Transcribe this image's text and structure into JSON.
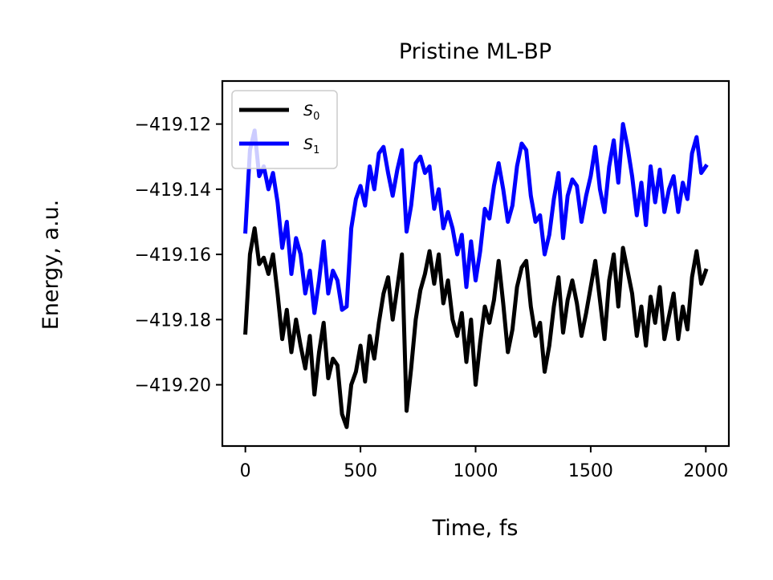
{
  "chart_data": {
    "type": "line",
    "title": "Pristine ML-BP",
    "xlabel": "Time, fs",
    "ylabel": "Energy, a.u.",
    "xlim": [
      -100,
      2100
    ],
    "ylim": [
      -419.2188,
      -419.1068
    ],
    "xticks": [
      0,
      500,
      1000,
      1500,
      2000
    ],
    "xtick_labels": [
      "0",
      "500",
      "1000",
      "1500",
      "2000"
    ],
    "yticks": [
      -419.2,
      -419.18,
      -419.16,
      -419.14,
      -419.12
    ],
    "ytick_labels": [
      "−419.20",
      "−419.18",
      "−419.16",
      "−419.14",
      "−419.12"
    ],
    "grid": false,
    "legend_position": "top-left",
    "x": [
      0,
      20,
      40,
      60,
      80,
      100,
      120,
      140,
      160,
      180,
      200,
      220,
      240,
      260,
      280,
      300,
      320,
      340,
      360,
      380,
      400,
      420,
      440,
      460,
      480,
      500,
      520,
      540,
      560,
      580,
      600,
      620,
      640,
      660,
      680,
      700,
      720,
      740,
      760,
      780,
      800,
      820,
      840,
      860,
      880,
      900,
      920,
      940,
      960,
      980,
      1000,
      1020,
      1040,
      1060,
      1080,
      1100,
      1120,
      1140,
      1160,
      1180,
      1200,
      1220,
      1240,
      1260,
      1280,
      1300,
      1320,
      1340,
      1360,
      1380,
      1400,
      1420,
      1440,
      1460,
      1480,
      1500,
      1520,
      1540,
      1560,
      1580,
      1600,
      1620,
      1640,
      1660,
      1680,
      1700,
      1720,
      1740,
      1760,
      1780,
      1800,
      1820,
      1840,
      1860,
      1880,
      1900,
      1920,
      1940,
      1960,
      1980,
      2000
    ],
    "series": [
      {
        "name": "S0",
        "label_main": "S",
        "label_sub": "0",
        "color": "#000000",
        "values": [
          -419.184,
          -419.16,
          -419.152,
          -419.163,
          -419.161,
          -419.166,
          -419.16,
          -419.172,
          -419.186,
          -419.177,
          -419.19,
          -419.18,
          -419.188,
          -419.195,
          -419.185,
          -419.203,
          -419.19,
          -419.181,
          -419.198,
          -419.192,
          -419.194,
          -419.209,
          -419.213,
          -419.2,
          -419.196,
          -419.188,
          -419.199,
          -419.185,
          -419.192,
          -419.181,
          -419.172,
          -419.167,
          -419.18,
          -419.17,
          -419.16,
          -419.208,
          -419.195,
          -419.18,
          -419.171,
          -419.166,
          -419.159,
          -419.169,
          -419.16,
          -419.175,
          -419.168,
          -419.18,
          -419.185,
          -419.178,
          -419.193,
          -419.18,
          -419.2,
          -419.187,
          -419.176,
          -419.181,
          -419.174,
          -419.162,
          -419.175,
          -419.19,
          -419.183,
          -419.17,
          -419.164,
          -419.162,
          -419.176,
          -419.185,
          -419.181,
          -419.196,
          -419.188,
          -419.176,
          -419.167,
          -419.184,
          -419.174,
          -419.168,
          -419.175,
          -419.185,
          -419.178,
          -419.17,
          -419.162,
          -419.174,
          -419.186,
          -419.168,
          -419.16,
          -419.176,
          -419.158,
          -419.165,
          -419.172,
          -419.185,
          -419.176,
          -419.188,
          -419.173,
          -419.181,
          -419.17,
          -419.186,
          -419.179,
          -419.172,
          -419.186,
          -419.176,
          -419.183,
          -419.167,
          -419.159,
          -419.169,
          -419.165
        ],
        "values_note": ""
      },
      {
        "name": "S1",
        "label_main": "S",
        "label_sub": "1",
        "color": "#0000ff",
        "values": [
          -419.153,
          -419.128,
          -419.122,
          -419.136,
          -419.133,
          -419.14,
          -419.135,
          -419.144,
          -419.158,
          -419.15,
          -419.166,
          -419.155,
          -419.16,
          -419.172,
          -419.165,
          -419.178,
          -419.168,
          -419.156,
          -419.172,
          -419.165,
          -419.168,
          -419.177,
          -419.176,
          -419.152,
          -419.143,
          -419.139,
          -419.145,
          -419.133,
          -419.14,
          -419.129,
          -419.127,
          -419.135,
          -419.142,
          -419.134,
          -419.128,
          -419.153,
          -419.145,
          -419.132,
          -419.13,
          -419.135,
          -419.133,
          -419.146,
          -419.14,
          -419.152,
          -419.147,
          -419.152,
          -419.16,
          -419.154,
          -419.17,
          -419.156,
          -419.168,
          -419.159,
          -419.146,
          -419.149,
          -419.139,
          -419.132,
          -419.14,
          -419.15,
          -419.145,
          -419.133,
          -419.126,
          -419.128,
          -419.142,
          -419.15,
          -419.148,
          -419.16,
          -419.154,
          -419.143,
          -419.135,
          -419.155,
          -419.142,
          -419.137,
          -419.139,
          -419.15,
          -419.142,
          -419.136,
          -419.127,
          -419.14,
          -419.147,
          -419.133,
          -419.125,
          -419.138,
          -419.12,
          -419.127,
          -419.136,
          -419.148,
          -419.138,
          -419.151,
          -419.133,
          -419.144,
          -419.134,
          -419.147,
          -419.14,
          -419.136,
          -419.147,
          -419.138,
          -419.143,
          -419.129,
          -419.124,
          -419.135,
          -419.133
        ]
      }
    ]
  }
}
